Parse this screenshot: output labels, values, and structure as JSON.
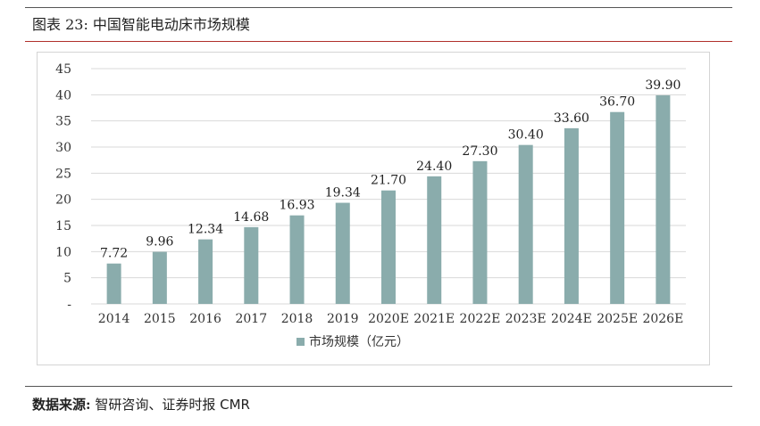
{
  "figure": {
    "title": "图表 23:  中国智能电动床市场规模",
    "source_label": "数据来源:",
    "source_text": "智研咨询、证券时报 CMR"
  },
  "chart_data": {
    "type": "bar",
    "categories": [
      "2014",
      "2015",
      "2016",
      "2017",
      "2018",
      "2019",
      "2020E",
      "2021E",
      "2022E",
      "2023E",
      "2024E",
      "2025E",
      "2026E"
    ],
    "series": [
      {
        "name": "市场规模（亿元）",
        "values": [
          7.72,
          9.96,
          12.34,
          14.68,
          16.93,
          19.34,
          21.7,
          24.4,
          27.3,
          30.4,
          33.6,
          36.7,
          39.9
        ],
        "labels": [
          "7.72",
          "9.96",
          "12.34",
          "14.68",
          "16.93",
          "19.34",
          "21.70",
          "24.40",
          "27.30",
          "30.40",
          "33.60",
          "36.70",
          "39.90"
        ]
      }
    ],
    "yticks": [
      "-",
      "5",
      "10",
      "15",
      "20",
      "25",
      "30",
      "35",
      "40",
      "45"
    ],
    "ylim": [
      0,
      45
    ],
    "grid": true,
    "legend_position": "bottom",
    "bar_color": "#8aacac",
    "grid_color": "#d9d9d9"
  }
}
